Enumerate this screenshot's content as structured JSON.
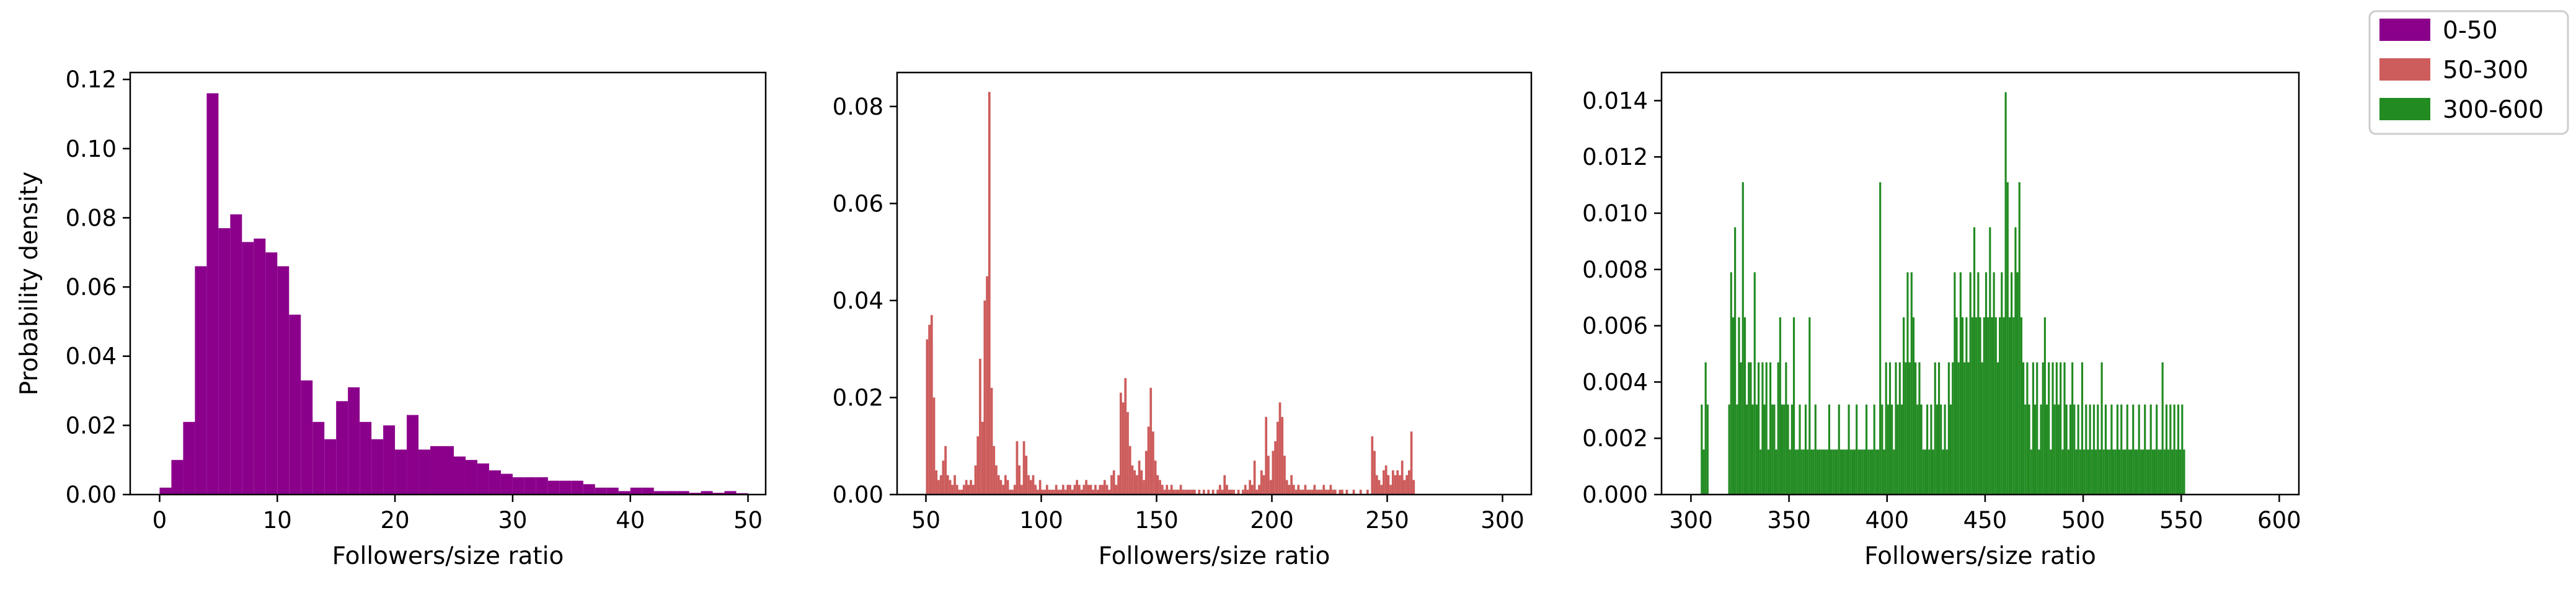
{
  "chart_data": [
    {
      "type": "bar",
      "subtype": "histogram",
      "series_name": "0-50",
      "color": "#8b008b",
      "xlabel": "Followers/size ratio",
      "ylabel": "Probability density",
      "xlim": [
        -2.5,
        51.5
      ],
      "ylim": [
        0,
        0.122
      ],
      "xticks": [
        0,
        10,
        20,
        30,
        40,
        50
      ],
      "xtick_labels": [
        "0",
        "10",
        "20",
        "30",
        "40",
        "50"
      ],
      "yticks": [
        0,
        0.02,
        0.04,
        0.06,
        0.08,
        0.1,
        0.12
      ],
      "ytick_labels": [
        "0.00",
        "0.02",
        "0.04",
        "0.06",
        "0.08",
        "0.10",
        "0.12"
      ],
      "bin_start": 0,
      "bin_width": 1,
      "values": [
        0.002,
        0.01,
        0.021,
        0.066,
        0.116,
        0.077,
        0.081,
        0.073,
        0.074,
        0.07,
        0.066,
        0.052,
        0.033,
        0.021,
        0.016,
        0.027,
        0.031,
        0.021,
        0.016,
        0.02,
        0.013,
        0.023,
        0.013,
        0.014,
        0.014,
        0.011,
        0.01,
        0.009,
        0.007,
        0.006,
        0.005,
        0.005,
        0.005,
        0.004,
        0.004,
        0.004,
        0.003,
        0.002,
        0.002,
        0.001,
        0.002,
        0.002,
        0.001,
        0.001,
        0.001,
        0.0005,
        0.001,
        0.0005,
        0.001,
        0.0004
      ]
    },
    {
      "type": "bar",
      "subtype": "histogram",
      "series_name": "50-300",
      "color": "#cd5c5c",
      "xlabel": "Followers/size ratio",
      "xlim": [
        37.5,
        312.5
      ],
      "ylim": [
        0,
        0.087
      ],
      "xticks": [
        50,
        100,
        150,
        200,
        250,
        300
      ],
      "xtick_labels": [
        "50",
        "100",
        "150",
        "200",
        "250",
        "300"
      ],
      "yticks": [
        0,
        0.02,
        0.04,
        0.06,
        0.08
      ],
      "ytick_labels": [
        "0.00",
        "0.02",
        "0.04",
        "0.06",
        "0.08"
      ],
      "bin_start": 50,
      "bin_width": 1,
      "values": [
        0.032,
        0.035,
        0.037,
        0.02,
        0.005,
        0.003,
        0.004,
        0.007,
        0.01,
        0.004,
        0.003,
        0.002,
        0.004,
        0.002,
        0.001,
        0.001,
        0.002,
        0.003,
        0.002,
        0.003,
        0.002,
        0.006,
        0.012,
        0.028,
        0.015,
        0.04,
        0.045,
        0.083,
        0.022,
        0.01,
        0.006,
        0.004,
        0.003,
        0.002,
        0.004,
        0.003,
        0.001,
        0.001,
        0.002,
        0.011,
        0.006,
        0.002,
        0.011,
        0.008,
        0.004,
        0.003,
        0.004,
        0.002,
        0.001,
        0.003,
        0.001,
        0.001,
        0.002,
        0.001,
        0.001,
        0.001,
        0.002,
        0.001,
        0.001,
        0.002,
        0.001,
        0.002,
        0.002,
        0.001,
        0.002,
        0.003,
        0.002,
        0.001,
        0.002,
        0.003,
        0.002,
        0.002,
        0.001,
        0.002,
        0.001,
        0.002,
        0.002,
        0.003,
        0.002,
        0.001,
        0.004,
        0.005,
        0.002,
        0.004,
        0.021,
        0.019,
        0.024,
        0.017,
        0.01,
        0.006,
        0.005,
        0.004,
        0.007,
        0.005,
        0.003,
        0.009,
        0.014,
        0.022,
        0.013,
        0.007,
        0.004,
        0.003,
        0.002,
        0.001,
        0.002,
        0.001,
        0.002,
        0.001,
        0.001,
        0.001,
        0.002,
        0.001,
        0.001,
        0.001,
        0.001,
        0.001,
        0.001,
        0.0,
        0.001,
        0.0,
        0.001,
        0.0,
        0.001,
        0.0,
        0.001,
        0.0,
        0.001,
        0.002,
        0.001,
        0.004,
        0.002,
        0.001,
        0.001,
        0.001,
        0.0,
        0.001,
        0.0,
        0.001,
        0.002,
        0.001,
        0.003,
        0.002,
        0.007,
        0.001,
        0.002,
        0.005,
        0.004,
        0.016,
        0.008,
        0.003,
        0.009,
        0.011,
        0.015,
        0.019,
        0.016,
        0.008,
        0.003,
        0.002,
        0.004,
        0.002,
        0.001,
        0.002,
        0.001,
        0.001,
        0.002,
        0.001,
        0.001,
        0.001,
        0.002,
        0.001,
        0.001,
        0.001,
        0.002,
        0.001,
        0.001,
        0.002,
        0.001,
        0.001,
        0.0,
        0.001,
        0.001,
        0.0,
        0.001,
        0.0,
        0.0,
        0.001,
        0.0,
        0.0,
        0.001,
        0.0,
        0.0,
        0.001,
        0.0,
        0.012,
        0.009,
        0.004,
        0.003,
        0.002,
        0.005,
        0.006,
        0.004,
        0.002,
        0.005,
        0.004,
        0.005,
        0.004,
        0.007,
        0.003,
        0.004,
        0.005,
        0.013,
        0.003
      ]
    },
    {
      "type": "bar",
      "subtype": "histogram",
      "series_name": "300-600",
      "color": "#228b22",
      "xlabel": "Followers/size ratio",
      "xlim": [
        285,
        610
      ],
      "ylim": [
        0,
        0.015
      ],
      "xticks": [
        300,
        350,
        400,
        450,
        500,
        550,
        600
      ],
      "xtick_labels": [
        "300",
        "350",
        "400",
        "450",
        "500",
        "550",
        "600"
      ],
      "yticks": [
        0,
        0.002,
        0.004,
        0.006,
        0.008,
        0.01,
        0.012,
        0.014
      ],
      "ytick_labels": [
        "0.000",
        "0.002",
        "0.004",
        "0.006",
        "0.008",
        "0.010",
        "0.012",
        "0.014"
      ],
      "bin_start": 305,
      "bin_width": 1,
      "values": [
        0.0032,
        0.0016,
        0.0047,
        0.0032,
        0.0,
        0.0,
        0.0,
        0.0,
        0.0,
        0.0,
        0.0,
        0.0,
        0.0,
        0.0,
        0.0032,
        0.0079,
        0.0063,
        0.0095,
        0.0032,
        0.0063,
        0.0047,
        0.0111,
        0.0063,
        0.0032,
        0.0047,
        0.0047,
        0.0032,
        0.0079,
        0.0032,
        0.0047,
        0.0016,
        0.0047,
        0.0032,
        0.0047,
        0.0016,
        0.0047,
        0.0032,
        0.0032,
        0.0016,
        0.0047,
        0.0063,
        0.0032,
        0.0032,
        0.0047,
        0.0032,
        0.0016,
        0.0032,
        0.0063,
        0.0016,
        0.0016,
        0.0032,
        0.0016,
        0.0016,
        0.0032,
        0.0016,
        0.0063,
        0.0016,
        0.0016,
        0.0032,
        0.0016,
        0.0016,
        0.0016,
        0.0016,
        0.0016,
        0.0016,
        0.0032,
        0.0016,
        0.0016,
        0.0016,
        0.0016,
        0.0032,
        0.0016,
        0.0016,
        0.0016,
        0.0016,
        0.0032,
        0.0016,
        0.0016,
        0.0016,
        0.0032,
        0.0016,
        0.0016,
        0.0016,
        0.0016,
        0.0032,
        0.0016,
        0.0016,
        0.0016,
        0.0032,
        0.0016,
        0.0016,
        0.0111,
        0.0032,
        0.0016,
        0.0047,
        0.0032,
        0.0047,
        0.0032,
        0.0016,
        0.0047,
        0.0032,
        0.0047,
        0.0032,
        0.0063,
        0.0047,
        0.0079,
        0.0047,
        0.0079,
        0.0063,
        0.0047,
        0.0032,
        0.0047,
        0.0032,
        0.0016,
        0.0016,
        0.0032,
        0.0016,
        0.0032,
        0.0016,
        0.0047,
        0.0032,
        0.0047,
        0.0032,
        0.0016,
        0.0032,
        0.0016,
        0.0047,
        0.0032,
        0.0047,
        0.0079,
        0.0063,
        0.0047,
        0.0079,
        0.0063,
        0.0047,
        0.0063,
        0.0047,
        0.0079,
        0.0063,
        0.0095,
        0.0063,
        0.0079,
        0.0063,
        0.0047,
        0.0063,
        0.0079,
        0.0063,
        0.0095,
        0.0063,
        0.0079,
        0.0063,
        0.0047,
        0.0063,
        0.0079,
        0.0063,
        0.0143,
        0.0111,
        0.0063,
        0.0079,
        0.0063,
        0.0095,
        0.0079,
        0.0111,
        0.0063,
        0.0047,
        0.0032,
        0.0047,
        0.0032,
        0.0016,
        0.0047,
        0.0032,
        0.0047,
        0.0016,
        0.0032,
        0.0047,
        0.0063,
        0.0032,
        0.0047,
        0.0016,
        0.0047,
        0.0032,
        0.0047,
        0.0032,
        0.0047,
        0.0016,
        0.0047,
        0.0032,
        0.0016,
        0.0032,
        0.0047,
        0.0032,
        0.0016,
        0.0032,
        0.0016,
        0.0047,
        0.0016,
        0.0032,
        0.0016,
        0.0032,
        0.0016,
        0.0032,
        0.0016,
        0.0032,
        0.0016,
        0.0047,
        0.0016,
        0.0032,
        0.0016,
        0.0016,
        0.0032,
        0.0016,
        0.0016,
        0.0032,
        0.0016,
        0.0032,
        0.0016,
        0.0016,
        0.0032,
        0.0016,
        0.0016,
        0.0032,
        0.0016,
        0.0016,
        0.0032,
        0.0016,
        0.0016,
        0.0032,
        0.0016,
        0.0016,
        0.0032,
        0.0016,
        0.0016,
        0.0032,
        0.0016,
        0.0016,
        0.0047,
        0.0016,
        0.0032,
        0.0016,
        0.0032,
        0.0016,
        0.0032,
        0.0016,
        0.0032,
        0.0016,
        0.0032,
        0.0016
      ]
    }
  ],
  "legend": {
    "placement": "top-right",
    "entries": [
      {
        "label": "0-50",
        "color": "#8b008b"
      },
      {
        "label": "50-300",
        "color": "#cd5c5c"
      },
      {
        "label": "300-600",
        "color": "#228b22"
      }
    ]
  }
}
